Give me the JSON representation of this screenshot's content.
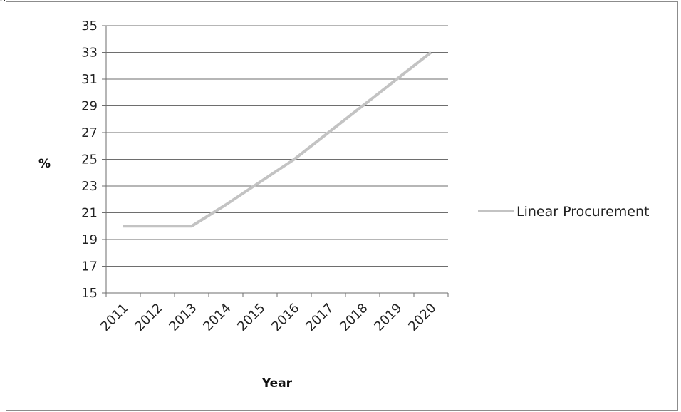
{
  "figure": {
    "top_text": "g"
  },
  "chart_data": {
    "type": "line",
    "title": "",
    "xlabel": "Year",
    "ylabel": "%",
    "categories": [
      "2011",
      "2012",
      "2013",
      "2014",
      "2015",
      "2016",
      "2017",
      "2018",
      "2019",
      "2020"
    ],
    "series": [
      {
        "name": "Linear Procurement",
        "values": [
          20,
          20,
          20,
          21.6,
          23.3,
          25,
          27,
          29,
          31,
          33
        ]
      }
    ],
    "ylim": [
      15,
      35
    ],
    "yticks": [
      15,
      17,
      19,
      21,
      23,
      25,
      27,
      29,
      31,
      33,
      35
    ],
    "grid": true,
    "legend": "right",
    "colors": {
      "line": "#c3c3c3",
      "grid": "#6e6e6e",
      "axis": "#6e6e6e"
    }
  }
}
